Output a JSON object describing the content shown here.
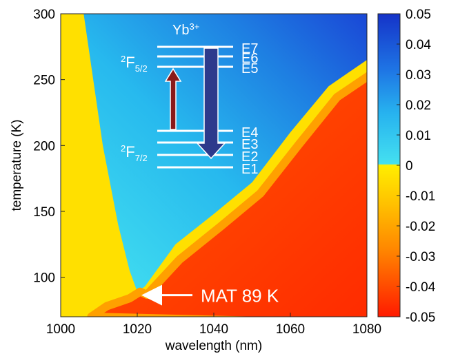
{
  "chart_data": {
    "type": "heatmap",
    "title": "",
    "xlabel": "wavelength (nm)",
    "ylabel": "temperature (K)",
    "xlim": [
      1000,
      1080
    ],
    "ylim": [
      70,
      300
    ],
    "x_ticks": [
      1000,
      1020,
      1040,
      1060,
      1080
    ],
    "y_ticks": [
      100,
      150,
      200,
      250,
      300
    ],
    "colorbar": {
      "range": [
        -0.05,
        0.05
      ],
      "ticks": [
        "0.05",
        "0.04",
        "0.03",
        "0.02",
        "0.01",
        "0",
        "-0.01",
        "-0.02",
        "-0.03",
        "-0.04",
        "-0.05"
      ],
      "colors": {
        "positive_high": "#1a3fd4",
        "positive_low": "#38d8ee",
        "zero": "#ffef00",
        "negative_mid": "#ffa200",
        "negative_low": "#ff1f00"
      }
    },
    "regions": {
      "positive_boundary": [
        [
          1006,
          300
        ],
        [
          1011,
          200
        ],
        [
          1015,
          140
        ],
        [
          1018,
          105
        ],
        [
          1020,
          89
        ],
        [
          1022,
          93
        ],
        [
          1030,
          125
        ],
        [
          1040,
          148
        ],
        [
          1050,
          172
        ],
        [
          1060,
          210
        ],
        [
          1070,
          245
        ],
        [
          1080,
          265
        ]
      ],
      "positive_color": "#38d8ee",
      "negative_color": "#ff2a00"
    },
    "annotations": {
      "ion": "Yb",
      "ion_charge": "3+",
      "upper_manifold": "2F5/2",
      "lower_manifold": "2F7/2",
      "levels": [
        "E7",
        "E6",
        "E5",
        "E4",
        "E3",
        "E2",
        "E1"
      ],
      "mat_label": "MAT 89 K",
      "mat_point": [
        1020,
        89
      ]
    }
  }
}
